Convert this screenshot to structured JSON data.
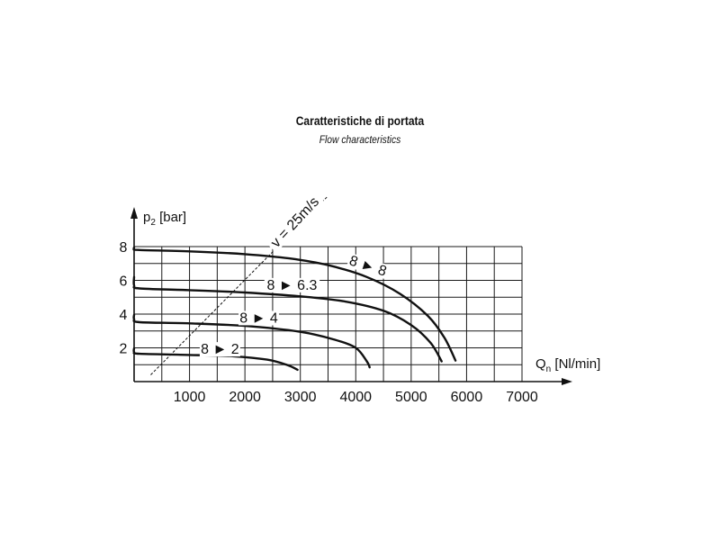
{
  "title": "Caratteristiche di portata",
  "subtitle": "Flow characteristics",
  "colors": {
    "ink": "#111111",
    "grid": "#1a1a1a"
  },
  "chart_data": {
    "type": "line",
    "title": "Caratteristiche di portata",
    "subtitle": "Flow characteristics",
    "xlabel": {
      "main": "Q",
      "sub": "n",
      "rest": " [Nl/min]"
    },
    "ylabel": {
      "main": "p",
      "sub": "2",
      "rest": " [bar]"
    },
    "xlim": [
      0,
      7000
    ],
    "ylim": [
      0,
      8
    ],
    "xticks": [
      1000,
      2000,
      3000,
      4000,
      5000,
      6000,
      7000
    ],
    "yticks": [
      2,
      4,
      6,
      8
    ],
    "grid": true,
    "series": [
      {
        "name": "8 ► 8",
        "points": [
          [
            0,
            7.95
          ],
          [
            0,
            7.85
          ],
          [
            100,
            7.8
          ],
          [
            1000,
            7.72
          ],
          [
            2000,
            7.55
          ],
          [
            2800,
            7.3
          ],
          [
            3500,
            6.9
          ],
          [
            4200,
            6.2
          ],
          [
            4800,
            5.2
          ],
          [
            5300,
            3.9
          ],
          [
            5600,
            2.6
          ],
          [
            5800,
            1.25
          ]
        ]
      },
      {
        "name": "8 ► 6.3",
        "points": [
          [
            0,
            6.2
          ],
          [
            0,
            5.7
          ],
          [
            100,
            5.52
          ],
          [
            1000,
            5.42
          ],
          [
            2000,
            5.28
          ],
          [
            3000,
            5.05
          ],
          [
            3800,
            4.75
          ],
          [
            4500,
            4.2
          ],
          [
            5000,
            3.35
          ],
          [
            5350,
            2.3
          ],
          [
            5550,
            1.2
          ]
        ]
      },
      {
        "name": "8 ► 4",
        "points": [
          [
            0,
            3.95
          ],
          [
            0,
            3.7
          ],
          [
            100,
            3.52
          ],
          [
            1000,
            3.45
          ],
          [
            2000,
            3.3
          ],
          [
            3000,
            2.95
          ],
          [
            3600,
            2.5
          ],
          [
            4000,
            2
          ],
          [
            4200,
            1.2
          ],
          [
            4250,
            0.85
          ]
        ]
      },
      {
        "name": "8 ► 2",
        "points": [
          [
            0,
            1.98
          ],
          [
            0,
            1.75
          ],
          [
            100,
            1.65
          ],
          [
            1000,
            1.58
          ],
          [
            1800,
            1.5
          ],
          [
            2400,
            1.3
          ],
          [
            2750,
            1.0
          ],
          [
            2950,
            0.7
          ]
        ]
      },
      {
        "name": "v = 25m/s",
        "style": "dashed",
        "points": [
          [
            300,
            0.4
          ],
          [
            3500,
            11.0
          ]
        ]
      }
    ],
    "annotations": [
      {
        "text": "8 ► 8",
        "x": 4200,
        "y": 6.65,
        "rotate": 18
      },
      {
        "text": "8 ► 6.3",
        "x": 2850,
        "y": 5.5,
        "rotate": 0
      },
      {
        "text": "8 ► 4",
        "x": 2250,
        "y": 3.55,
        "rotate": 0
      },
      {
        "text": "8 ► 2",
        "x": 1550,
        "y": 1.7,
        "rotate": 0
      },
      {
        "text": "v = 25m/s",
        "x": 2950,
        "y": 9.3,
        "rotate": -47
      }
    ]
  }
}
